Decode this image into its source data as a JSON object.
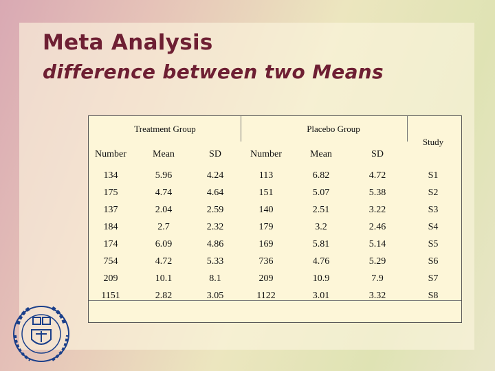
{
  "title": "Meta Analysis",
  "subtitle": "difference between two Means",
  "table": {
    "group_headers": {
      "treatment": "Treatment Group",
      "placebo": "Placebo Group",
      "study": "Study"
    },
    "columns": [
      "Number",
      "Mean",
      "SD",
      "Number",
      "Mean",
      "SD"
    ],
    "rows": [
      [
        "134",
        "5.96",
        "4.24",
        "113",
        "6.82",
        "4.72",
        "S1"
      ],
      [
        "175",
        "4.74",
        "4.64",
        "151",
        "5.07",
        "5.38",
        "S2"
      ],
      [
        "137",
        "2.04",
        "2.59",
        "140",
        "2.51",
        "3.22",
        "S3"
      ],
      [
        "184",
        "2.7",
        "2.32",
        "179",
        "3.2",
        "2.46",
        "S4"
      ],
      [
        "174",
        "6.09",
        "4.86",
        "169",
        "5.81",
        "5.14",
        "S5"
      ],
      [
        "754",
        "4.72",
        "5.33",
        "736",
        "4.76",
        "5.29",
        "S6"
      ],
      [
        "209",
        "10.1",
        "8.1",
        "209",
        "10.9",
        "7.9",
        "S7"
      ],
      [
        "1151",
        "2.82",
        "3.05",
        "1122",
        "3.01",
        "3.32",
        "S8"
      ]
    ]
  },
  "logo": {
    "name": "university-seal-icon",
    "color": "#1a3f8a"
  }
}
